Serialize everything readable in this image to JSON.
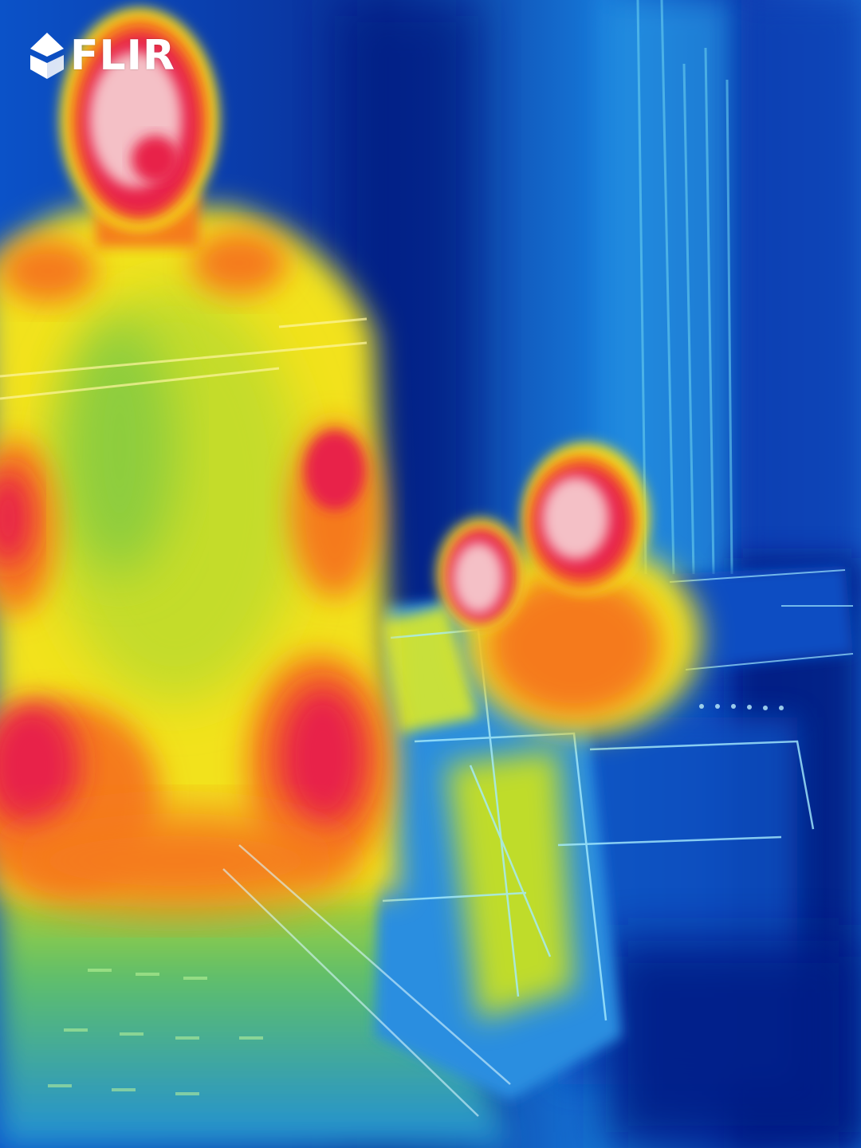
{
  "image": {
    "kind": "thermal-camera-photo",
    "palette": "iron-rainbow",
    "subjects": [
      "standing-person",
      "seated-person",
      "chair",
      "curtain",
      "window"
    ],
    "colors": {
      "cold_deep": "#04126a",
      "cold": "#0a46c8",
      "cool": "#1e88e0",
      "mid": "#9cd43a",
      "warm": "#f2e21a",
      "hot": "#f57a1c",
      "hottest": "#e8204a",
      "peak": "#f4c0c6"
    }
  },
  "brand": {
    "logo_text": "FLIR",
    "icon": "flir-diamond-logo-icon"
  }
}
